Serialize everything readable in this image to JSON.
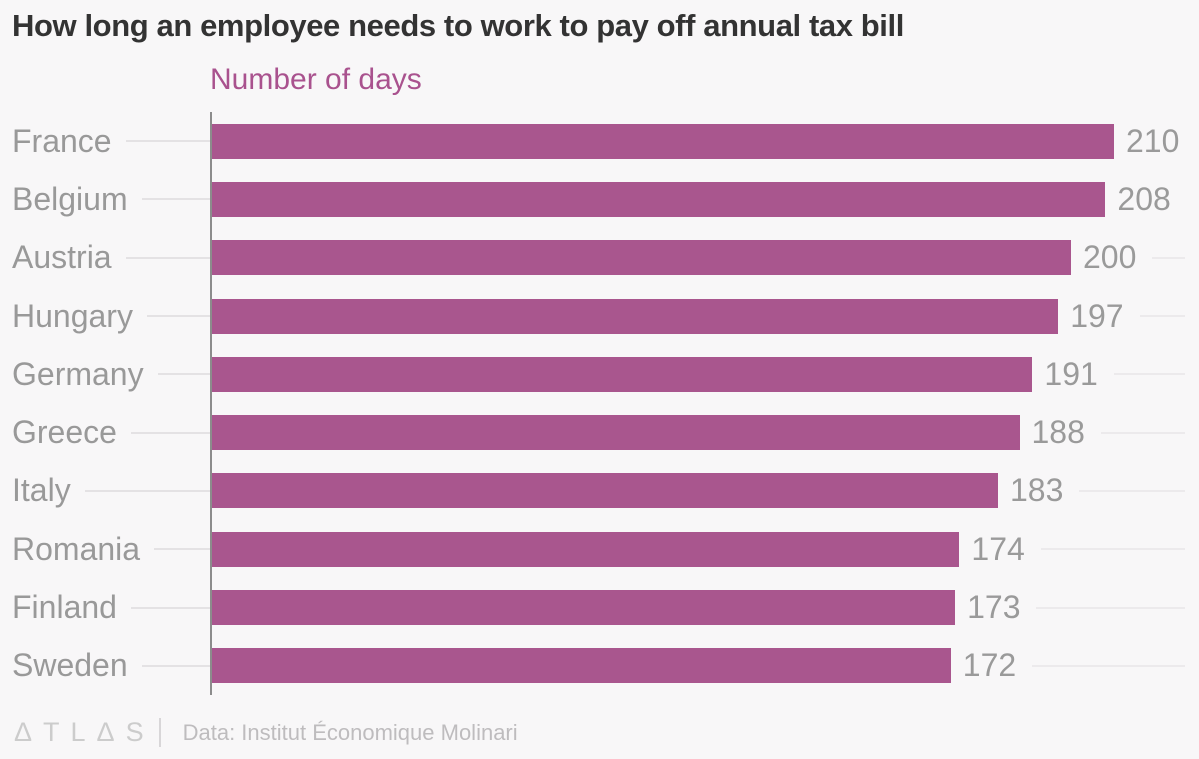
{
  "title": "How long an employee needs to work to pay off annual tax bill",
  "subtitle": "Number of days",
  "footer": {
    "logo": "ΔTLΔS",
    "source": "Data: Institut Économique Molinari"
  },
  "colors": {
    "bar": "#a9568e",
    "subtitle": "#a9528e",
    "title": "#333333",
    "category_label": "#999999",
    "value_label": "#9a9a9a",
    "axis": "#8c8c8c",
    "leader_line": "#e4e2e4",
    "background": "#f8f7f8"
  },
  "chart_data": {
    "type": "bar",
    "orientation": "horizontal",
    "title": "How long an employee needs to work to pay off annual tax bill",
    "xlabel": "Number of days",
    "ylabel": "",
    "categories": [
      "France",
      "Belgium",
      "Austria",
      "Hungary",
      "Germany",
      "Greece",
      "Italy",
      "Romania",
      "Finland",
      "Sweden"
    ],
    "values": [
      210,
      208,
      200,
      197,
      191,
      188,
      183,
      174,
      173,
      172
    ],
    "xlim": [
      0,
      210
    ],
    "grid": false,
    "legend": "none",
    "value_labels": true,
    "source": "Data: Institut Économique Molinari"
  }
}
